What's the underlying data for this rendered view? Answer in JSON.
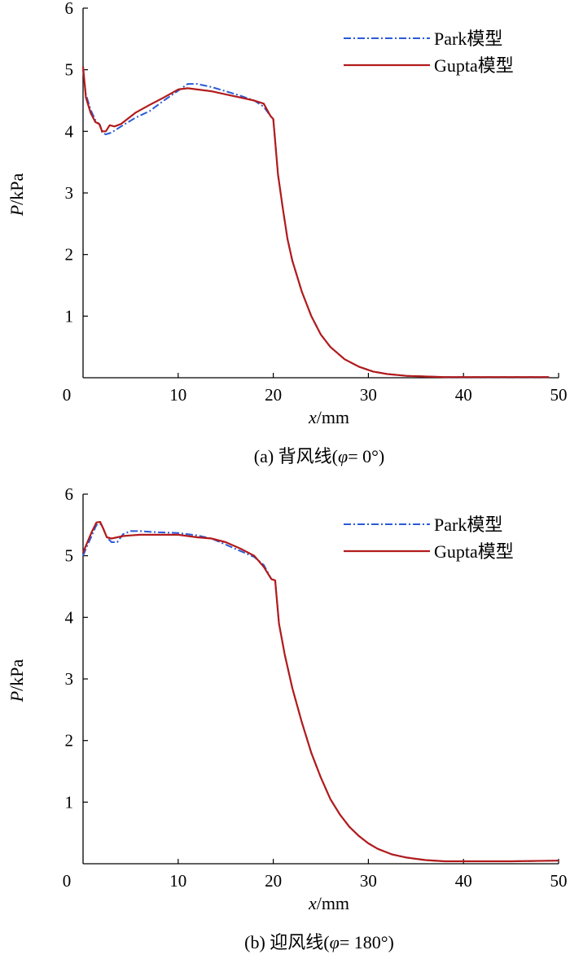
{
  "chart_data": [
    {
      "type": "line",
      "panel_label": "(a)",
      "caption": "(a) 背风线(φ= 0°)",
      "xlabel": "x/mm",
      "ylabel": "P/kPa",
      "xlim": [
        0,
        50
      ],
      "ylim": [
        0,
        6
      ],
      "xticks": [
        "0",
        "10",
        "20",
        "30",
        "40",
        "50"
      ],
      "yticks": [
        "0",
        "1",
        "2",
        "3",
        "4",
        "5",
        "6"
      ],
      "legend_position": "top-right",
      "series": [
        {
          "name": "Park模型",
          "color": "#2a5bd7",
          "style": "dashdot",
          "x": [
            0,
            0.3,
            0.8,
            1.3,
            1.8,
            2.0,
            2.4,
            3.0,
            4.0,
            5.5,
            7.0,
            8.5,
            10.0,
            11.0,
            12.0,
            13.5,
            15.0,
            16.5,
            18.0,
            19.0,
            19.7,
            20.0,
            20.5,
            21.0,
            21.5,
            22.0,
            23.0,
            24.0,
            25.0,
            26.0,
            27.5,
            29.0,
            30.5,
            32.0,
            34.0,
            36.0,
            38.0,
            40.0,
            45.0,
            49.0
          ],
          "y": [
            5.0,
            4.6,
            4.35,
            4.18,
            4.1,
            3.98,
            3.95,
            3.98,
            4.08,
            4.22,
            4.33,
            4.5,
            4.66,
            4.77,
            4.77,
            4.72,
            4.65,
            4.58,
            4.5,
            4.4,
            4.25,
            4.2,
            3.3,
            2.75,
            2.25,
            1.9,
            1.4,
            1.0,
            0.7,
            0.5,
            0.3,
            0.18,
            0.1,
            0.06,
            0.03,
            0.02,
            0.01,
            0.01,
            0.01,
            0.01
          ]
        },
        {
          "name": "Gupta模型",
          "color": "#b31b1b",
          "style": "solid",
          "x": [
            0,
            0.3,
            0.8,
            1.3,
            1.7,
            2.0,
            2.4,
            2.8,
            3.3,
            4.0,
            5.5,
            7.0,
            8.5,
            10.0,
            11.0,
            12.0,
            13.5,
            15.0,
            16.5,
            18.0,
            19.0,
            19.7,
            20.0,
            20.5,
            21.0,
            21.5,
            22.0,
            23.0,
            24.0,
            25.0,
            26.0,
            27.5,
            29.0,
            30.5,
            32.0,
            34.0,
            36.0,
            38.0,
            40.0,
            45.0,
            49.0
          ],
          "y": [
            5.05,
            4.55,
            4.3,
            4.15,
            4.12,
            4.0,
            4.0,
            4.1,
            4.08,
            4.12,
            4.3,
            4.43,
            4.55,
            4.68,
            4.7,
            4.68,
            4.65,
            4.6,
            4.55,
            4.5,
            4.45,
            4.25,
            4.2,
            3.3,
            2.75,
            2.25,
            1.9,
            1.4,
            1.0,
            0.7,
            0.5,
            0.3,
            0.18,
            0.1,
            0.06,
            0.03,
            0.02,
            0.01,
            0.01,
            0.01,
            0.01
          ]
        }
      ]
    },
    {
      "type": "line",
      "panel_label": "(b)",
      "caption": "(b) 迎风线(φ= 180°)",
      "xlabel": "x/mm",
      "ylabel": "P/kPa",
      "xlim": [
        0,
        50
      ],
      "ylim": [
        0,
        6
      ],
      "xticks": [
        "0",
        "10",
        "20",
        "30",
        "40",
        "50"
      ],
      "yticks": [
        "0",
        "1",
        "2",
        "3",
        "4",
        "5",
        "6"
      ],
      "legend_position": "top-right",
      "series": [
        {
          "name": "Park模型",
          "color": "#2a5bd7",
          "style": "dashdot",
          "x": [
            0,
            0.4,
            0.9,
            1.4,
            1.8,
            2.1,
            2.5,
            3.0,
            3.6,
            4.2,
            5.0,
            6.0,
            7.0,
            8.0,
            10.0,
            12.0,
            13.5,
            15.0,
            16.5,
            18.0,
            19.0,
            19.8,
            20.2,
            20.6,
            21.2,
            22.0,
            23.0,
            24.0,
            25.0,
            26.0,
            27.0,
            28.0,
            29.0,
            30.0,
            31.0,
            32.5,
            34.0,
            36.0,
            38.0,
            40.0,
            45.0,
            50.0
          ],
          "y": [
            5.0,
            5.15,
            5.32,
            5.5,
            5.52,
            5.45,
            5.3,
            5.22,
            5.22,
            5.35,
            5.4,
            5.4,
            5.39,
            5.38,
            5.37,
            5.33,
            5.28,
            5.18,
            5.08,
            4.98,
            4.85,
            4.62,
            4.6,
            3.9,
            3.4,
            2.85,
            2.3,
            1.8,
            1.4,
            1.05,
            0.8,
            0.6,
            0.45,
            0.33,
            0.24,
            0.15,
            0.1,
            0.06,
            0.04,
            0.04,
            0.04,
            0.05
          ]
        },
        {
          "name": "Gupta模型",
          "color": "#b31b1b",
          "style": "solid",
          "x": [
            0,
            0.4,
            0.9,
            1.4,
            1.8,
            2.1,
            2.5,
            3.0,
            3.6,
            4.2,
            5.0,
            6.0,
            7.0,
            8.0,
            10.0,
            12.0,
            13.5,
            15.0,
            16.5,
            18.0,
            19.0,
            19.8,
            20.2,
            20.6,
            21.2,
            22.0,
            23.0,
            24.0,
            25.0,
            26.0,
            27.0,
            28.0,
            29.0,
            30.0,
            31.0,
            32.5,
            34.0,
            36.0,
            38.0,
            40.0,
            45.0,
            50.0
          ],
          "y": [
            5.05,
            5.2,
            5.38,
            5.54,
            5.55,
            5.45,
            5.3,
            5.28,
            5.3,
            5.32,
            5.33,
            5.34,
            5.34,
            5.34,
            5.34,
            5.3,
            5.28,
            5.22,
            5.12,
            5.0,
            4.82,
            4.62,
            4.6,
            3.9,
            3.4,
            2.85,
            2.3,
            1.8,
            1.4,
            1.05,
            0.8,
            0.6,
            0.45,
            0.33,
            0.24,
            0.15,
            0.1,
            0.06,
            0.04,
            0.04,
            0.04,
            0.05
          ]
        }
      ]
    }
  ]
}
